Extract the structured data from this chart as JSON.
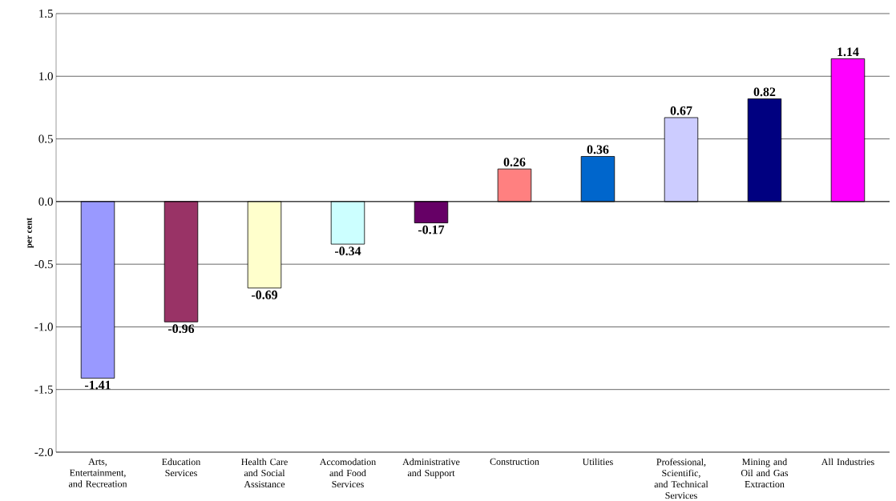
{
  "chart_data": {
    "type": "bar",
    "ylabel": "per cent",
    "categories": [
      "Arts, Entertainment, and Recreation",
      "Education Services",
      "Health Care and Social Assistance",
      "Accomodation and Food Services",
      "Administrative and Support",
      "Construction",
      "Utilities",
      "Professional, Scientific, and Technical Services",
      "Mining and Oil and Gas Extraction",
      "All Industries"
    ],
    "values": [
      -1.41,
      -0.96,
      -0.69,
      -0.34,
      -0.17,
      0.26,
      0.36,
      0.67,
      0.82,
      1.14
    ],
    "colors": [
      "#9999ff",
      "#993366",
      "#ffffcc",
      "#ccffff",
      "#660066",
      "#ff8080",
      "#0066cc",
      "#ccccff",
      "#000080",
      "#ff00ff"
    ],
    "ylim": [
      -2.0,
      1.5
    ],
    "yticks": [
      {
        "value": -2.0,
        "label": "-2.0"
      },
      {
        "value": -1.5,
        "label": "-1.5"
      },
      {
        "value": -1.0,
        "label": "-1.0"
      },
      {
        "value": -0.5,
        "label": "-0.5"
      },
      {
        "value": 0.0,
        "label": "0.0"
      },
      {
        "value": 0.5,
        "label": "0.5"
      },
      {
        "value": 1.0,
        "label": "1.0"
      },
      {
        "value": 1.5,
        "label": "1.5"
      }
    ],
    "grid": "y",
    "data_labels": true
  }
}
